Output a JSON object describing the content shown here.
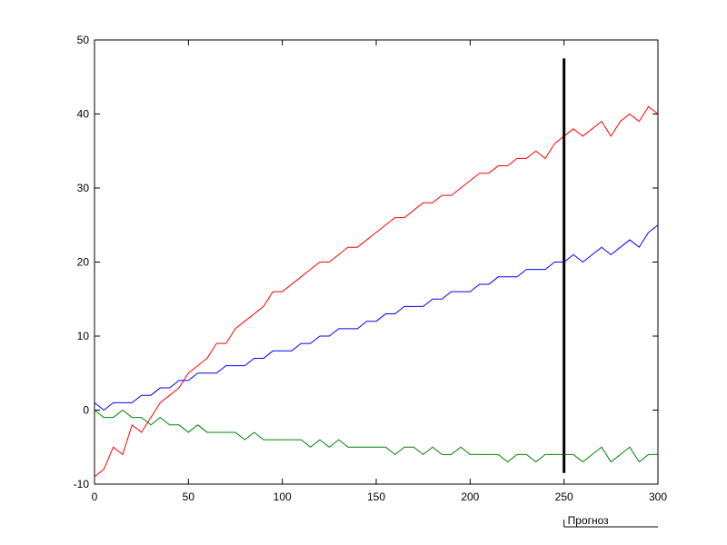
{
  "chart_data": {
    "type": "line",
    "x": [
      0,
      5,
      10,
      15,
      20,
      25,
      30,
      35,
      40,
      45,
      50,
      55,
      60,
      65,
      70,
      75,
      80,
      85,
      90,
      95,
      100,
      105,
      110,
      115,
      120,
      125,
      130,
      135,
      140,
      145,
      150,
      155,
      160,
      165,
      170,
      175,
      180,
      185,
      190,
      195,
      200,
      205,
      210,
      215,
      220,
      225,
      230,
      235,
      240,
      245,
      250,
      255,
      260,
      265,
      270,
      275,
      280,
      285,
      290,
      295,
      300
    ],
    "series": [
      {
        "color": "#ff0000",
        "values": [
          -9,
          -8,
          -5,
          -6,
          -2,
          -3,
          -1,
          1,
          2,
          3,
          5,
          6,
          7,
          9,
          9,
          11,
          12,
          13,
          14,
          16,
          16,
          17,
          18,
          19,
          20,
          20,
          21,
          22,
          22,
          23,
          24,
          25,
          26,
          26,
          27,
          28,
          28,
          29,
          29,
          30,
          31,
          32,
          32,
          33,
          33,
          34,
          34,
          35,
          34,
          36,
          37,
          38,
          37,
          38,
          39,
          37,
          39,
          40,
          39,
          41,
          40
        ]
      },
      {
        "color": "#0000ff",
        "values": [
          1,
          0,
          1,
          1,
          1,
          2,
          2,
          3,
          3,
          4,
          4,
          5,
          5,
          5,
          6,
          6,
          6,
          7,
          7,
          8,
          8,
          8,
          9,
          9,
          10,
          10,
          11,
          11,
          11,
          12,
          12,
          13,
          13,
          14,
          14,
          14,
          15,
          15,
          16,
          16,
          16,
          17,
          17,
          18,
          18,
          18,
          19,
          19,
          19,
          20,
          20,
          21,
          20,
          21,
          22,
          21,
          22,
          23,
          22,
          24,
          25
        ]
      },
      {
        "color": "#008000",
        "values": [
          0,
          -1,
          -1,
          0,
          -1,
          -1,
          -2,
          -1,
          -2,
          -2,
          -3,
          -2,
          -3,
          -3,
          -3,
          -3,
          -4,
          -3,
          -4,
          -4,
          -4,
          -4,
          -4,
          -5,
          -4,
          -5,
          -4,
          -5,
          -5,
          -5,
          -5,
          -5,
          -6,
          -5,
          -5,
          -6,
          -5,
          -6,
          -6,
          -5,
          -6,
          -6,
          -6,
          -6,
          -7,
          -6,
          -6,
          -7,
          -6,
          -6,
          -6,
          -6,
          -7,
          -6,
          -5,
          -7,
          -6,
          -5,
          -7,
          -6,
          -6
        ]
      }
    ],
    "xlim": [
      0,
      300
    ],
    "ylim": [
      -10,
      50
    ],
    "xticks": [
      0,
      50,
      100,
      150,
      200,
      250,
      300
    ],
    "yticks": [
      -10,
      0,
      10,
      20,
      30,
      40,
      50
    ],
    "grid": false,
    "vline": {
      "x": 250,
      "y": [
        -8.5,
        47.5
      ],
      "color": "#000000"
    },
    "annotation": {
      "text": "Прогноз",
      "x": [
        250,
        300
      ]
    }
  }
}
